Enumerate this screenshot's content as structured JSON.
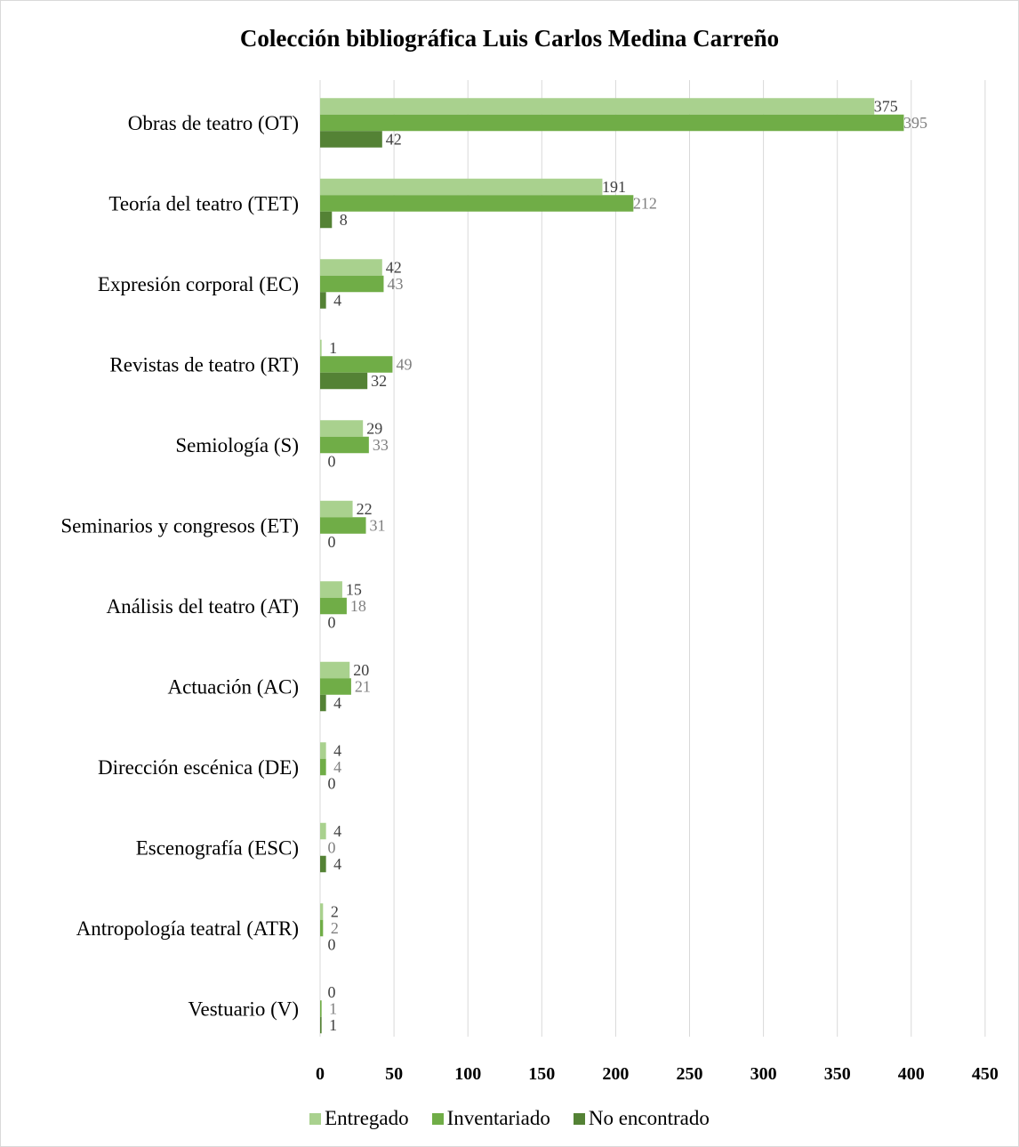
{
  "chart_data": {
    "type": "bar",
    "orientation": "horizontal",
    "title": "Colección bibliográfica Luis Carlos Medina Carreño",
    "categories": [
      "Obras de teatro (OT)",
      "Teoría del teatro (TET)",
      "Expresión corporal (EC)",
      "Revistas de teatro (RT)",
      "Semiología  (S)",
      "Seminarios y congresos (ET)",
      "Análisis del teatro (AT)",
      "Actuación (AC)",
      "Dirección escénica (DE)",
      "Escenografía (ESC)",
      "Antropología teatral (ATR)",
      "Vestuario (V)"
    ],
    "series": [
      {
        "name": "Entregado",
        "color": "#a9d18e",
        "label_color": "#404040",
        "values": [
          375,
          191,
          42,
          1,
          29,
          22,
          15,
          20,
          4,
          4,
          2,
          0
        ]
      },
      {
        "name": "Inventariado",
        "color": "#70ad47",
        "label_color": "#7f7f7f",
        "values": [
          395,
          212,
          43,
          49,
          33,
          31,
          18,
          21,
          4,
          0,
          2,
          1
        ]
      },
      {
        "name": "No encontrado",
        "color": "#548235",
        "label_color": "#404040",
        "values": [
          42,
          8,
          4,
          32,
          0,
          0,
          0,
          4,
          0,
          4,
          0,
          1
        ]
      }
    ],
    "x_ticks": [
      0,
      50,
      100,
      150,
      200,
      250,
      300,
      350,
      400,
      450
    ],
    "xlim": [
      0,
      450
    ],
    "xlabel": "",
    "ylabel": "",
    "grid": "vertical",
    "legend_position": "bottom"
  }
}
